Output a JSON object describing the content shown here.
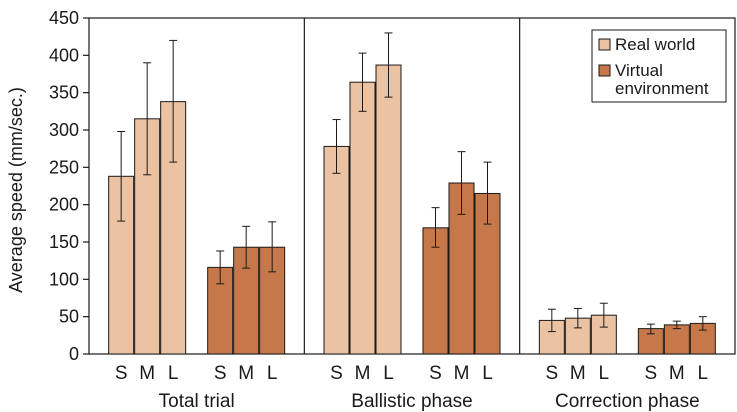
{
  "chart_data": {
    "type": "bar",
    "ylabel": "Average speed (mm/sec.)",
    "ylim": [
      0,
      450
    ],
    "yticks": [
      0,
      50,
      100,
      150,
      200,
      250,
      300,
      350,
      400,
      450
    ],
    "grid": false,
    "legend": {
      "placement": "top-right",
      "entries": [
        {
          "series": "Real world",
          "text_lines": [
            "Real world"
          ]
        },
        {
          "series": "Virtual environment",
          "text_lines": [
            "Virtual",
            "environment"
          ]
        }
      ]
    },
    "colors": {
      "Real world": "#ebc2a2",
      "Virtual environment": "#c7784a",
      "outline": "#1a1a1a"
    },
    "groups": [
      {
        "name": "Total trial",
        "series": [
          {
            "name": "Real world",
            "categories": [
              "S",
              "M",
              "L"
            ],
            "values": [
              238,
              315,
              338
            ],
            "error_low": [
              178,
              240,
              257
            ],
            "error_high": [
              298,
              390,
              420
            ]
          },
          {
            "name": "Virtual environment",
            "categories": [
              "S",
              "M",
              "L"
            ],
            "values": [
              116,
              143,
              143
            ],
            "error_low": [
              94,
              115,
              110
            ],
            "error_high": [
              138,
              171,
              177
            ]
          }
        ]
      },
      {
        "name": "Ballistic phase",
        "series": [
          {
            "name": "Real world",
            "categories": [
              "S",
              "M",
              "L"
            ],
            "values": [
              278,
              364,
              387
            ],
            "error_low": [
              242,
              325,
              344
            ],
            "error_high": [
              314,
              403,
              430
            ]
          },
          {
            "name": "Virtual environment",
            "categories": [
              "S",
              "M",
              "L"
            ],
            "values": [
              169,
              229,
              215
            ],
            "error_low": [
              143,
              187,
              174
            ],
            "error_high": [
              196,
              271,
              257
            ]
          }
        ]
      },
      {
        "name": "Correction phase",
        "series": [
          {
            "name": "Real world",
            "categories": [
              "S",
              "M",
              "L"
            ],
            "values": [
              45,
              48,
              52
            ],
            "error_low": [
              30,
              35,
              36
            ],
            "error_high": [
              60,
              61,
              68
            ]
          },
          {
            "name": "Virtual environment",
            "categories": [
              "S",
              "M",
              "L"
            ],
            "values": [
              34,
              39,
              41
            ],
            "error_low": [
              27,
              34,
              32
            ],
            "error_high": [
              40,
              44,
              50
            ]
          }
        ]
      }
    ]
  }
}
